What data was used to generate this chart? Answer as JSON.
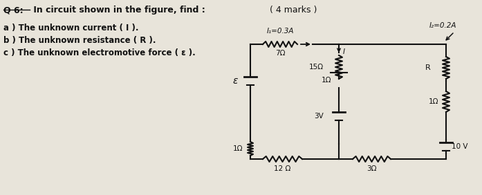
{
  "title_text": "Q 6: In circuit shown in the figure, find :",
  "marks_text": "( 4 marks )",
  "part_a": "a ) The unknown current ( I ).",
  "part_b": "b ) The unknown resistance ( R ).",
  "part_c": "c ) The unknown electromotive force ( ε ).",
  "bg_color": "#e8e4da",
  "text_color": "#111111",
  "circuit": {
    "I1_label": "I₁=0.3A",
    "I2_label": "I₂=0.2A",
    "R_label": "R",
    "r7_label": "7Ω",
    "r15_label": "15Ω",
    "r1_mid": "1Ω",
    "emf_3v": "3V",
    "r12_bottom": "12 Ω",
    "emf_label": "ε",
    "r1_left": "1Ω",
    "r1_right": "1Ω",
    "v10_label": "10 V",
    "r3_label": "3Ω",
    "I_label": "I"
  }
}
